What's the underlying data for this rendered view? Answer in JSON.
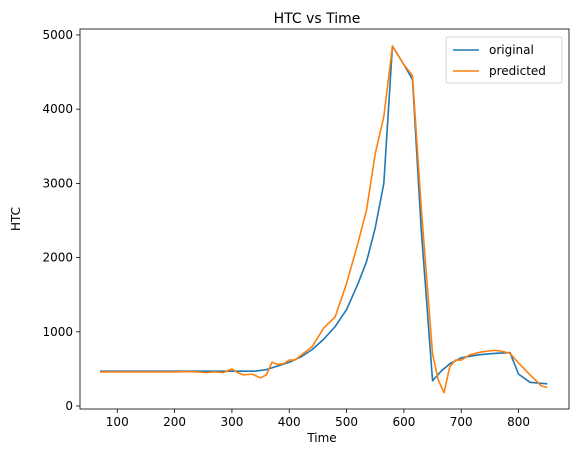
{
  "chart_data": {
    "type": "line",
    "title": "HTC vs Time",
    "xlabel": "Time",
    "ylabel": "HTC",
    "xlim": [
      35,
      888
    ],
    "ylim": [
      -40,
      5080
    ],
    "xticks": [
      100,
      200,
      300,
      400,
      500,
      600,
      700,
      800
    ],
    "yticks": [
      0,
      1000,
      2000,
      3000,
      4000,
      5000
    ],
    "grid": false,
    "legend": "top-right",
    "series": [
      {
        "name": "original",
        "color": "#1f77b4",
        "x": [
          70,
          100,
          150,
          200,
          230,
          260,
          300,
          340,
          360,
          380,
          400,
          420,
          440,
          460,
          480,
          500,
          520,
          535,
          550,
          565,
          580,
          600,
          615,
          630,
          650,
          665,
          680,
          700,
          730,
          760,
          785,
          800,
          820,
          850
        ],
        "y": [
          470,
          470,
          470,
          470,
          470,
          470,
          470,
          470,
          490,
          540,
          590,
          660,
          760,
          900,
          1070,
          1300,
          1650,
          1950,
          2400,
          3000,
          4850,
          4600,
          4400,
          2400,
          340,
          470,
          570,
          650,
          690,
          710,
          720,
          430,
          320,
          300
        ]
      },
      {
        "name": "predicted",
        "color": "#ff7f0e",
        "x": [
          70,
          100,
          150,
          200,
          220,
          240,
          255,
          270,
          285,
          300,
          310,
          320,
          335,
          350,
          360,
          370,
          380,
          390,
          400,
          410,
          420,
          440,
          460,
          480,
          500,
          520,
          535,
          550,
          565,
          580,
          600,
          615,
          630,
          650,
          660,
          670,
          680,
          690,
          700,
          715,
          730,
          745,
          760,
          770,
          785,
          800,
          820,
          840,
          850
        ],
        "y": [
          460,
          460,
          460,
          460,
          465,
          460,
          450,
          460,
          450,
          500,
          450,
          420,
          430,
          380,
          420,
          590,
          560,
          570,
          620,
          620,
          680,
          800,
          1050,
          1200,
          1650,
          2200,
          2650,
          3400,
          3900,
          4850,
          4600,
          4450,
          2700,
          700,
          350,
          180,
          530,
          620,
          620,
          690,
          720,
          740,
          750,
          740,
          710,
          580,
          420,
          270,
          250
        ]
      }
    ]
  }
}
